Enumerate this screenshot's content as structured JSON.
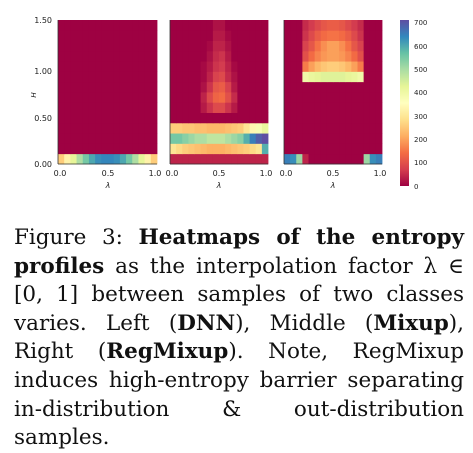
{
  "chart_data": [
    {
      "type": "heatmap",
      "panel": "left",
      "xlabel": "λ",
      "ylabel": "H",
      "x_ticks": [
        "0.0",
        "0.5",
        "1.0"
      ],
      "y_ticks": [
        "0.00",
        "0.50",
        "1.00",
        "1.50"
      ],
      "xlim": [
        0,
        1
      ],
      "ylim": [
        0,
        1.5
      ],
      "x_bins": 16,
      "y_bins": 14,
      "values": [
        [
          260,
          330,
          430,
          500,
          560,
          610,
          640,
          650,
          650,
          640,
          610,
          560,
          500,
          430,
          330,
          260
        ],
        [
          0,
          0,
          0,
          0,
          0,
          0,
          0,
          0,
          0,
          0,
          0,
          0,
          0,
          0,
          0,
          0
        ],
        [
          0,
          0,
          0,
          0,
          0,
          0,
          0,
          0,
          0,
          0,
          0,
          0,
          0,
          0,
          0,
          0
        ],
        [
          0,
          0,
          0,
          0,
          0,
          0,
          0,
          0,
          0,
          0,
          0,
          0,
          0,
          0,
          0,
          0
        ],
        [
          0,
          0,
          0,
          0,
          0,
          0,
          0,
          0,
          0,
          0,
          0,
          0,
          0,
          0,
          0,
          0
        ],
        [
          0,
          0,
          0,
          0,
          0,
          0,
          0,
          0,
          0,
          0,
          0,
          0,
          0,
          0,
          0,
          0
        ],
        [
          0,
          0,
          0,
          0,
          0,
          0,
          0,
          0,
          0,
          0,
          0,
          0,
          0,
          0,
          0,
          0
        ],
        [
          0,
          0,
          0,
          0,
          0,
          0,
          0,
          0,
          0,
          0,
          0,
          0,
          0,
          0,
          0,
          0
        ],
        [
          0,
          0,
          0,
          0,
          0,
          0,
          0,
          0,
          0,
          0,
          0,
          0,
          0,
          0,
          0,
          0
        ],
        [
          0,
          0,
          0,
          0,
          0,
          0,
          0,
          0,
          0,
          0,
          0,
          0,
          0,
          0,
          0,
          0
        ],
        [
          0,
          0,
          0,
          0,
          0,
          0,
          0,
          0,
          0,
          0,
          0,
          0,
          0,
          0,
          0,
          0
        ],
        [
          0,
          0,
          0,
          0,
          0,
          0,
          0,
          0,
          0,
          0,
          0,
          0,
          0,
          0,
          0,
          0
        ],
        [
          0,
          0,
          0,
          0,
          0,
          0,
          0,
          0,
          0,
          0,
          0,
          0,
          0,
          0,
          0,
          0
        ],
        [
          0,
          0,
          0,
          0,
          0,
          0,
          0,
          0,
          0,
          0,
          0,
          0,
          0,
          0,
          0,
          0
        ]
      ]
    },
    {
      "type": "heatmap",
      "panel": "middle",
      "xlabel": "λ",
      "ylabel": "",
      "x_ticks": [
        "0.0",
        "0.5",
        "1.0"
      ],
      "xlim": [
        0,
        1
      ],
      "ylim": [
        0,
        1.5
      ],
      "x_bins": 16,
      "y_bins": 14,
      "values": [
        [
          40,
          40,
          40,
          40,
          40,
          40,
          40,
          40,
          40,
          40,
          40,
          40,
          40,
          40,
          40,
          40
        ],
        [
          300,
          280,
          260,
          250,
          240,
          230,
          220,
          220,
          220,
          230,
          240,
          250,
          260,
          280,
          300,
          600
        ],
        [
          560,
          560,
          540,
          520,
          500,
          500,
          480,
          480,
          480,
          500,
          520,
          540,
          600,
          660,
          700,
          720
        ],
        [
          260,
          260,
          250,
          250,
          240,
          240,
          230,
          230,
          230,
          240,
          250,
          260,
          300,
          340,
          380,
          420
        ],
        [
          0,
          0,
          0,
          0,
          0,
          0,
          0,
          0,
          0,
          0,
          0,
          0,
          0,
          0,
          0,
          0
        ],
        [
          0,
          0,
          0,
          0,
          0,
          30,
          60,
          90,
          90,
          60,
          30,
          0,
          0,
          0,
          0,
          0
        ],
        [
          0,
          0,
          0,
          0,
          0,
          40,
          90,
          130,
          140,
          100,
          50,
          0,
          0,
          0,
          0,
          0
        ],
        [
          0,
          0,
          0,
          0,
          0,
          20,
          60,
          110,
          120,
          80,
          30,
          0,
          0,
          0,
          0,
          0
        ],
        [
          0,
          0,
          0,
          0,
          0,
          10,
          40,
          80,
          90,
          50,
          20,
          0,
          0,
          0,
          0,
          0
        ],
        [
          0,
          0,
          0,
          0,
          0,
          10,
          30,
          60,
          70,
          40,
          10,
          0,
          0,
          0,
          0,
          0
        ],
        [
          0,
          0,
          0,
          0,
          0,
          0,
          20,
          50,
          60,
          30,
          0,
          0,
          0,
          0,
          0,
          0
        ],
        [
          0,
          0,
          0,
          0,
          0,
          0,
          10,
          40,
          40,
          20,
          0,
          0,
          0,
          0,
          0,
          0
        ],
        [
          0,
          0,
          0,
          0,
          0,
          0,
          0,
          30,
          30,
          10,
          0,
          0,
          0,
          0,
          0,
          0
        ],
        [
          0,
          0,
          0,
          0,
          0,
          0,
          0,
          20,
          20,
          0,
          0,
          0,
          0,
          0,
          0,
          0
        ]
      ]
    },
    {
      "type": "heatmap",
      "panel": "right",
      "xlabel": "λ",
      "ylabel": "",
      "x_ticks": [
        "0.0",
        "0.5",
        "1.0"
      ],
      "xlim": [
        0,
        1
      ],
      "ylim": [
        0,
        1.5
      ],
      "x_bins": 16,
      "y_bins": 14,
      "values": [
        [
          660,
          640,
          520,
          40,
          0,
          0,
          0,
          0,
          0,
          0,
          0,
          0,
          0,
          520,
          640,
          660
        ],
        [
          0,
          0,
          0,
          0,
          0,
          0,
          0,
          0,
          0,
          0,
          0,
          0,
          0,
          0,
          0,
          0
        ],
        [
          0,
          0,
          0,
          0,
          0,
          0,
          0,
          0,
          0,
          0,
          0,
          0,
          0,
          0,
          0,
          0
        ],
        [
          0,
          0,
          0,
          0,
          0,
          0,
          0,
          0,
          0,
          0,
          0,
          0,
          0,
          0,
          0,
          0
        ],
        [
          0,
          0,
          0,
          0,
          0,
          0,
          0,
          0,
          0,
          0,
          0,
          0,
          0,
          0,
          0,
          0
        ],
        [
          0,
          0,
          0,
          0,
          0,
          0,
          0,
          0,
          0,
          0,
          0,
          0,
          0,
          0,
          0,
          0
        ],
        [
          0,
          0,
          0,
          0,
          0,
          0,
          0,
          0,
          0,
          0,
          0,
          0,
          0,
          0,
          0,
          0
        ],
        [
          0,
          0,
          0,
          0,
          0,
          0,
          0,
          0,
          0,
          0,
          0,
          0,
          0,
          0,
          0,
          0
        ],
        [
          0,
          0,
          0,
          400,
          420,
          430,
          440,
          440,
          440,
          440,
          430,
          420,
          400,
          0,
          0,
          0
        ],
        [
          0,
          0,
          0,
          160,
          200,
          230,
          250,
          260,
          260,
          250,
          230,
          200,
          160,
          0,
          0,
          0
        ],
        [
          0,
          0,
          0,
          100,
          140,
          170,
          190,
          200,
          200,
          190,
          170,
          140,
          100,
          0,
          0,
          0
        ],
        [
          0,
          0,
          0,
          80,
          110,
          150,
          180,
          200,
          200,
          180,
          150,
          110,
          80,
          0,
          0,
          0
        ],
        [
          0,
          0,
          0,
          60,
          90,
          120,
          140,
          150,
          150,
          140,
          120,
          90,
          60,
          0,
          0,
          0
        ],
        [
          0,
          0,
          0,
          50,
          70,
          90,
          110,
          120,
          120,
          110,
          90,
          70,
          50,
          0,
          0,
          0
        ]
      ]
    }
  ],
  "colorbar": {
    "min": 0,
    "max": 720,
    "ticks": [
      "700",
      "600",
      "500",
      "400",
      "300",
      "200",
      "100",
      "0"
    ]
  },
  "caption": {
    "lead": "Figure 3:  ",
    "bold_title": "Heatmaps of the entropy profiles",
    "text1": " as the interpolation factor λ ∈ [0, 1] between samples of two classes varies.  Left (",
    "bold_left": "DNN",
    "text2": "), Middle (",
    "bold_middle": "Mixup",
    "text3": "), Right (",
    "bold_right": "RegMixup",
    "text4": ").  Note, RegMixup induces high-entropy barrier separating in-distribution & out-distribution samples."
  }
}
